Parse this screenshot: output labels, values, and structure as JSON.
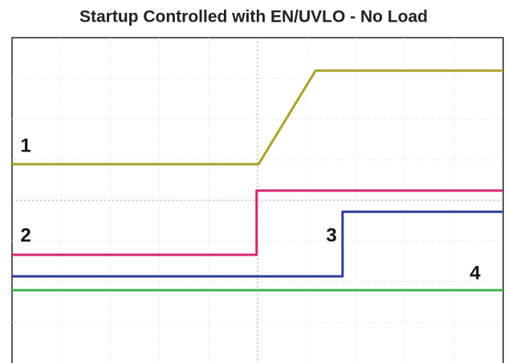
{
  "chart_data": {
    "type": "line",
    "title": "Startup Controlled with EN/UVLO - No Load",
    "xlim": [
      0,
      10
    ],
    "ylim": [
      0,
      8
    ],
    "xticks": [
      1,
      2,
      3,
      4,
      5,
      6,
      7,
      8,
      9
    ],
    "yticks": [
      1,
      2,
      3,
      4,
      5,
      6,
      7
    ],
    "grid": true,
    "series": [
      {
        "name": "1",
        "color": "#a8a32a",
        "x": [
          0,
          5.02,
          6.18,
          10
        ],
        "values": [
          4.89,
          4.89,
          7.19,
          7.19
        ]
      },
      {
        "name": "2",
        "color": "#d8256f",
        "x": [
          0,
          4.98,
          4.98,
          10
        ],
        "values": [
          2.66,
          2.66,
          4.24,
          4.24
        ]
      },
      {
        "name": "3",
        "color": "#2e3c9e",
        "x": [
          0,
          6.73,
          6.73,
          10
        ],
        "values": [
          2.13,
          2.13,
          3.72,
          3.72
        ]
      },
      {
        "name": "4",
        "color": "#3db34a",
        "x": [
          0,
          10
        ],
        "values": [
          1.79,
          1.79
        ]
      }
    ]
  }
}
